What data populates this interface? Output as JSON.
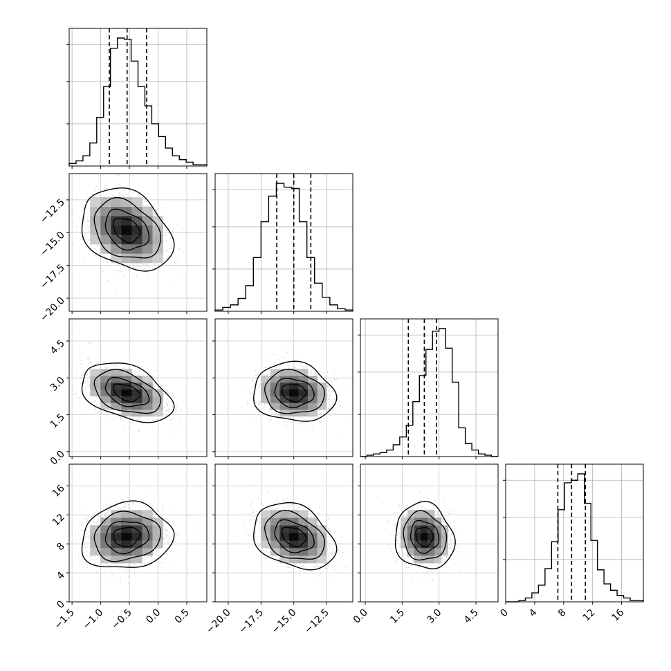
{
  "chart_data": {
    "type": "corner",
    "grid": true,
    "parameters": [
      {
        "range": [
          -1.55,
          0.85
        ],
        "ticks": [
          -1.5,
          -1.0,
          -0.5,
          0.0,
          0.5
        ],
        "tick_labels": [
          "−1.5",
          "−1.0",
          "−0.5",
          "0.0",
          "0.5"
        ],
        "quantiles": [
          -0.85,
          -0.54,
          -0.2
        ],
        "hist_counts": [
          2,
          4,
          8,
          18,
          38,
          62,
          92,
          100,
          99,
          82,
          62,
          47,
          33,
          23,
          14,
          8,
          5,
          3,
          1,
          1
        ]
      },
      {
        "range": [
          -21.0,
          -10.5
        ],
        "ticks": [
          -20.0,
          -17.5,
          -15.0,
          -12.5
        ],
        "tick_labels": [
          "−20.0",
          "−17.5",
          "−15.0",
          "−12.5"
        ],
        "quantiles": [
          -16.3,
          -15.0,
          -13.7
        ],
        "hist_counts": [
          1,
          3,
          5,
          10,
          20,
          42,
          70,
          90,
          100,
          97,
          96,
          70,
          42,
          22,
          11,
          5,
          2,
          1
        ]
      },
      {
        "range": [
          -0.2,
          5.4
        ],
        "ticks": [
          0.0,
          1.5,
          3.0,
          4.5
        ],
        "tick_labels": [
          "0.0",
          "1.5",
          "3.0",
          "4.5"
        ],
        "quantiles": [
          1.75,
          2.4,
          2.9
        ],
        "hist_counts": [
          0,
          1,
          2,
          3,
          5,
          9,
          15,
          24,
          42,
          62,
          82,
          96,
          98,
          83,
          57,
          22,
          10,
          5,
          2,
          1,
          0
        ]
      },
      {
        "range": [
          0.0,
          19.0
        ],
        "ticks": [
          0,
          4,
          8,
          12,
          16
        ],
        "tick_labels": [
          "0",
          "4",
          "8",
          "12",
          "16"
        ],
        "quantiles": [
          7.2,
          9.1,
          11.0
        ],
        "hist_counts": [
          0,
          0,
          1,
          3,
          7,
          13,
          26,
          47,
          72,
          93,
          95,
          100,
          77,
          48,
          25,
          14,
          9,
          5,
          3,
          1,
          1
        ]
      }
    ],
    "pairs": [
      {
        "row": 1,
        "col": 0,
        "center": [
          -0.55,
          -14.8
        ],
        "sd": [
          0.33,
          1.3
        ],
        "rho": -0.3
      },
      {
        "row": 2,
        "col": 0,
        "center": [
          -0.55,
          2.4
        ],
        "sd": [
          0.33,
          0.5
        ],
        "rho": -0.4
      },
      {
        "row": 2,
        "col": 1,
        "center": [
          -15.0,
          2.4
        ],
        "sd": [
          1.3,
          0.5
        ],
        "rho": -0.1
      },
      {
        "row": 3,
        "col": 0,
        "center": [
          -0.55,
          9.0
        ],
        "sd": [
          0.33,
          1.9
        ],
        "rho": 0.1
      },
      {
        "row": 3,
        "col": 1,
        "center": [
          -15.0,
          9.0
        ],
        "sd": [
          1.3,
          1.9
        ],
        "rho": -0.3
      },
      {
        "row": 3,
        "col": 2,
        "center": [
          2.4,
          9.0
        ],
        "sd": [
          0.5,
          1.9
        ],
        "rho": -0.1
      }
    ]
  }
}
